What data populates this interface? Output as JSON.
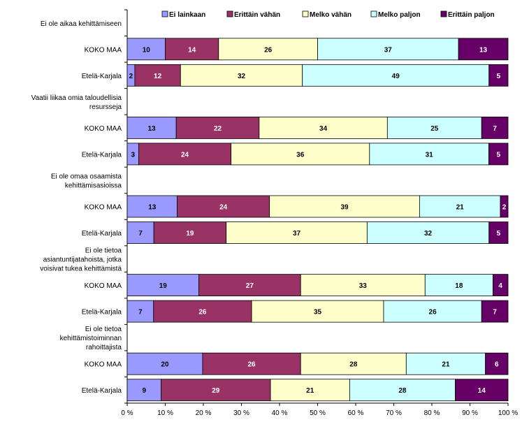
{
  "chart_data": {
    "type": "bar",
    "orientation": "horizontal",
    "stacked": "percent",
    "legend_position": "top-right",
    "xlim": [
      0,
      100
    ],
    "x_ticks": [
      "0 %",
      "10 %",
      "20 %",
      "30 %",
      "40 %",
      "50 %",
      "60 %",
      "70 %",
      "80 %",
      "90 %",
      "100 %"
    ],
    "series": [
      {
        "name": "Ei lainkaan",
        "color": "#9999FF"
      },
      {
        "name": "Erittäin vähän",
        "color": "#993366"
      },
      {
        "name": "Melko vähän",
        "color": "#FFFFCC"
      },
      {
        "name": "Melko paljon",
        "color": "#CCFFFF"
      },
      {
        "name": "Erittäin paljon",
        "color": "#660066"
      }
    ],
    "rows": [
      {
        "kind": "group",
        "label": "Ei ole aikaa kehittämiseen"
      },
      {
        "kind": "bar",
        "label": "KOKO MAA",
        "values": [
          10,
          14,
          26,
          37,
          13
        ]
      },
      {
        "kind": "bar",
        "label": "Etelä-Karjala",
        "values": [
          2,
          12,
          32,
          49,
          5
        ]
      },
      {
        "kind": "group",
        "label": "Vaatii liikaa omia taloudellisia resursseja"
      },
      {
        "kind": "bar",
        "label": "KOKO MAA",
        "values": [
          13,
          22,
          34,
          25,
          7
        ]
      },
      {
        "kind": "bar",
        "label": "Etelä-Karjala",
        "values": [
          3,
          24,
          36,
          31,
          5
        ]
      },
      {
        "kind": "group",
        "label": "Ei ole omaa osaamista kehittämisasioissa"
      },
      {
        "kind": "bar",
        "label": "KOKO MAA",
        "values": [
          13,
          24,
          39,
          21,
          2
        ]
      },
      {
        "kind": "bar",
        "label": "Etelä-Karjala",
        "values": [
          7,
          19,
          37,
          32,
          5
        ]
      },
      {
        "kind": "group",
        "label": "Ei ole tietoa asiantuntijatahoista, jotka voisivat tukea kehittämistä"
      },
      {
        "kind": "bar",
        "label": "KOKO MAA",
        "values": [
          19,
          27,
          33,
          18,
          4
        ]
      },
      {
        "kind": "bar",
        "label": "Etelä-Karjala",
        "values": [
          7,
          26,
          35,
          26,
          7
        ]
      },
      {
        "kind": "group",
        "label": "Ei ole tietoa kehittämistoiminnan rahoittajista"
      },
      {
        "kind": "bar",
        "label": "KOKO MAA",
        "values": [
          20,
          26,
          28,
          21,
          6
        ]
      },
      {
        "kind": "bar",
        "label": "Etelä-Karjala",
        "values": [
          9,
          29,
          21,
          28,
          14
        ]
      }
    ]
  }
}
